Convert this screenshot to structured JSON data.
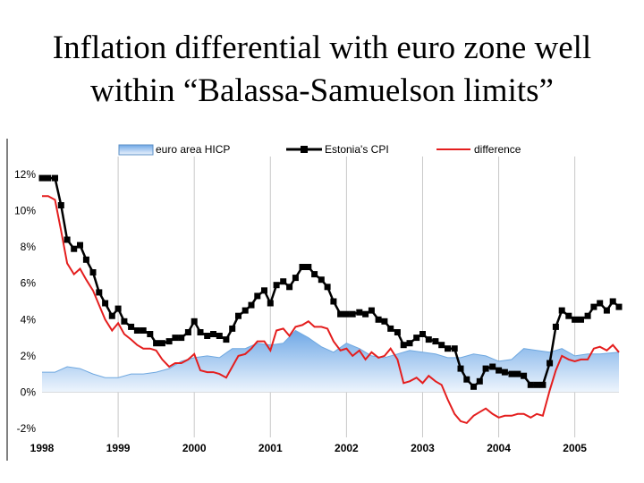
{
  "slide": {
    "title_line1": "Inflation differential with euro zone well",
    "title_line2": "within “Balassa-Samuelson limits”"
  },
  "chart_data": {
    "type": "line",
    "title": "",
    "xlabel": "",
    "ylabel": "",
    "ylim": [
      -2,
      12
    ],
    "xlim": [
      1998.0,
      2005.58
    ],
    "yticks": [
      "12%",
      "10%",
      "8%",
      "6%",
      "4%",
      "2%",
      "0%",
      "-2%"
    ],
    "ytick_values": [
      12,
      10,
      8,
      6,
      4,
      2,
      0,
      -2
    ],
    "xticks": [
      "1998",
      "1999",
      "2000",
      "2001",
      "2002",
      "2003",
      "2004",
      "2005"
    ],
    "xtick_values": [
      1998,
      1999,
      2000,
      2001,
      2002,
      2003,
      2004,
      2005
    ],
    "grid": "vertical at years",
    "legend_position": "top",
    "colors": {
      "euro": "#9ec9f0",
      "euro_line": "#6fa8e0",
      "estonia": "#000000",
      "difference": "#e41e1e"
    },
    "series": [
      {
        "name": "euro area HICP",
        "kind": "area",
        "x": [
          1998.0,
          1998.17,
          1998.33,
          1998.5,
          1998.67,
          1998.83,
          1999.0,
          1999.17,
          1999.33,
          1999.5,
          1999.67,
          1999.83,
          2000.0,
          2000.17,
          2000.33,
          2000.5,
          2000.67,
          2000.83,
          2001.0,
          2001.17,
          2001.33,
          2001.5,
          2001.67,
          2001.83,
          2002.0,
          2002.17,
          2002.33,
          2002.5,
          2002.67,
          2002.83,
          2003.0,
          2003.17,
          2003.33,
          2003.5,
          2003.67,
          2003.83,
          2004.0,
          2004.17,
          2004.33,
          2004.5,
          2004.67,
          2004.83,
          2005.0,
          2005.17,
          2005.33,
          2005.58
        ],
        "values": [
          1.1,
          1.1,
          1.4,
          1.3,
          1.0,
          0.8,
          0.8,
          1.0,
          1.0,
          1.1,
          1.3,
          1.7,
          1.9,
          2.0,
          1.9,
          2.4,
          2.4,
          2.7,
          2.6,
          2.7,
          3.4,
          3.0,
          2.5,
          2.2,
          2.7,
          2.4,
          2.0,
          1.9,
          2.1,
          2.3,
          2.2,
          2.1,
          1.9,
          1.9,
          2.1,
          2.0,
          1.7,
          1.8,
          2.4,
          2.3,
          2.2,
          2.4,
          2.0,
          2.1,
          2.1,
          2.2
        ]
      },
      {
        "name": "Estonia's CPI",
        "kind": "line-markers",
        "x": [
          1998.0,
          1998.08,
          1998.17,
          1998.25,
          1998.33,
          1998.42,
          1998.5,
          1998.58,
          1998.67,
          1998.75,
          1998.83,
          1998.92,
          1999.0,
          1999.08,
          1999.17,
          1999.25,
          1999.33,
          1999.42,
          1999.5,
          1999.58,
          1999.67,
          1999.75,
          1999.83,
          1999.92,
          2000.0,
          2000.08,
          2000.17,
          2000.25,
          2000.33,
          2000.42,
          2000.5,
          2000.58,
          2000.67,
          2000.75,
          2000.83,
          2000.92,
          2001.0,
          2001.08,
          2001.17,
          2001.25,
          2001.33,
          2001.42,
          2001.5,
          2001.58,
          2001.67,
          2001.75,
          2001.83,
          2001.92,
          2002.0,
          2002.08,
          2002.17,
          2002.25,
          2002.33,
          2002.42,
          2002.5,
          2002.58,
          2002.67,
          2002.75,
          2002.83,
          2002.92,
          2003.0,
          2003.08,
          2003.17,
          2003.25,
          2003.33,
          2003.42,
          2003.5,
          2003.58,
          2003.67,
          2003.75,
          2003.83,
          2003.92,
          2004.0,
          2004.08,
          2004.17,
          2004.25,
          2004.33,
          2004.42,
          2004.5,
          2004.58,
          2004.67,
          2004.75,
          2004.83,
          2004.92,
          2005.0,
          2005.08,
          2005.17,
          2005.25,
          2005.33,
          2005.42,
          2005.5,
          2005.58
        ],
        "values": [
          11.8,
          11.8,
          11.8,
          10.3,
          8.4,
          7.9,
          8.1,
          7.3,
          6.6,
          5.5,
          4.9,
          4.2,
          4.6,
          3.9,
          3.6,
          3.4,
          3.4,
          3.2,
          2.7,
          2.7,
          2.8,
          3.0,
          3.0,
          3.3,
          3.9,
          3.3,
          3.1,
          3.2,
          3.1,
          2.9,
          3.5,
          4.2,
          4.5,
          4.8,
          5.3,
          5.6,
          4.9,
          5.9,
          6.1,
          5.8,
          6.3,
          6.9,
          6.9,
          6.5,
          6.2,
          5.8,
          5.0,
          4.3,
          4.3,
          4.3,
          4.4,
          4.3,
          4.5,
          4.0,
          3.9,
          3.5,
          3.3,
          2.6,
          2.7,
          3.0,
          3.2,
          2.9,
          2.8,
          2.6,
          2.4,
          2.4,
          1.3,
          0.7,
          0.3,
          0.6,
          1.3,
          1.4,
          1.2,
          1.1,
          1.0,
          1.0,
          0.9,
          0.4,
          0.4,
          0.4,
          1.6,
          3.6,
          4.5,
          4.2,
          4.0,
          4.0,
          4.2,
          4.7,
          4.9,
          4.5,
          5.0,
          4.7
        ]
      },
      {
        "name": "difference",
        "kind": "line",
        "x": [
          1998.0,
          1998.08,
          1998.17,
          1998.25,
          1998.33,
          1998.42,
          1998.5,
          1998.58,
          1998.67,
          1998.75,
          1998.83,
          1998.92,
          1999.0,
          1999.08,
          1999.17,
          1999.25,
          1999.33,
          1999.42,
          1999.5,
          1999.58,
          1999.67,
          1999.75,
          1999.83,
          1999.92,
          2000.0,
          2000.08,
          2000.17,
          2000.25,
          2000.33,
          2000.42,
          2000.5,
          2000.58,
          2000.67,
          2000.75,
          2000.83,
          2000.92,
          2001.0,
          2001.08,
          2001.17,
          2001.25,
          2001.33,
          2001.42,
          2001.5,
          2001.58,
          2001.67,
          2001.75,
          2001.83,
          2001.92,
          2002.0,
          2002.08,
          2002.17,
          2002.25,
          2002.33,
          2002.42,
          2002.5,
          2002.58,
          2002.67,
          2002.75,
          2002.83,
          2002.92,
          2003.0,
          2003.08,
          2003.17,
          2003.25,
          2003.33,
          2003.42,
          2003.5,
          2003.58,
          2003.67,
          2003.75,
          2003.83,
          2003.92,
          2004.0,
          2004.08,
          2004.17,
          2004.25,
          2004.33,
          2004.42,
          2004.5,
          2004.58,
          2004.67,
          2004.75,
          2004.83,
          2004.92,
          2005.0,
          2005.08,
          2005.17,
          2005.25,
          2005.33,
          2005.42,
          2005.5,
          2005.58
        ],
        "values": [
          10.8,
          10.8,
          10.6,
          8.9,
          7.1,
          6.5,
          6.8,
          6.2,
          5.6,
          4.8,
          4.0,
          3.4,
          3.8,
          3.2,
          2.9,
          2.6,
          2.4,
          2.4,
          2.3,
          1.8,
          1.4,
          1.6,
          1.6,
          1.8,
          2.1,
          1.2,
          1.1,
          1.1,
          1.0,
          0.8,
          1.4,
          2.0,
          2.1,
          2.4,
          2.8,
          2.8,
          2.3,
          3.4,
          3.5,
          3.1,
          3.6,
          3.7,
          3.9,
          3.6,
          3.6,
          3.5,
          2.8,
          2.3,
          2.4,
          2.0,
          2.3,
          1.8,
          2.2,
          1.9,
          2.0,
          2.4,
          1.8,
          0.5,
          0.6,
          0.8,
          0.5,
          0.9,
          0.6,
          0.4,
          -0.4,
          -1.2,
          -1.6,
          -1.7,
          -1.3,
          -1.1,
          -0.9,
          -1.2,
          -1.4,
          -1.3,
          -1.3,
          -1.2,
          -1.2,
          -1.4,
          -1.2,
          -1.3,
          0.1,
          1.2,
          2.0,
          1.8,
          1.7,
          1.8,
          1.8,
          2.4,
          2.5,
          2.3,
          2.6,
          2.2
        ]
      }
    ]
  }
}
